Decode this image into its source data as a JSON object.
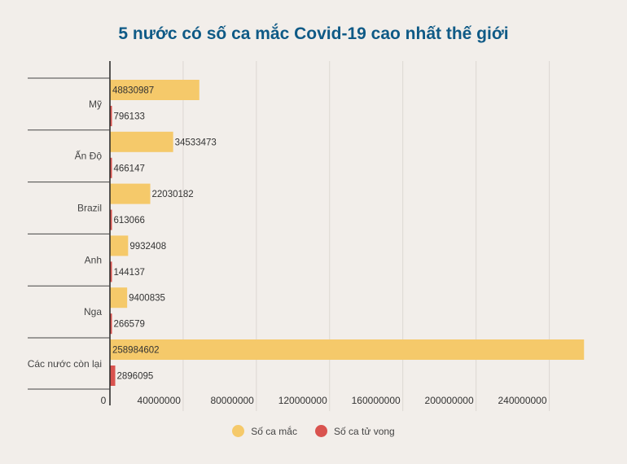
{
  "chart_data": {
    "type": "bar",
    "orientation": "horizontal",
    "title": "5 nước có số ca mắc Covid-19 cao nhất thế giới",
    "categories": [
      "Mỹ",
      "Ấn Độ",
      "Brazil",
      "Anh",
      "Nga",
      "Các nước còn lại"
    ],
    "series": [
      {
        "name": "Số ca mắc",
        "color": "#f5c96a",
        "values": [
          48830987,
          34533473,
          22030182,
          9932408,
          9400835,
          258984602
        ]
      },
      {
        "name": "Số ca tử vong",
        "color": "#d9534f",
        "values": [
          796133,
          466147,
          613066,
          144137,
          266579,
          2896095
        ]
      }
    ],
    "xlim": [
      0,
      270000000
    ],
    "xticks": [
      0,
      40000000,
      80000000,
      120000000,
      160000000,
      200000000,
      240000000
    ],
    "xtick_labels": [
      "0",
      "40000000",
      "80000000",
      "120000000",
      "160000000",
      "200000000",
      "240000000"
    ],
    "grid": true,
    "legend_position": "bottom"
  }
}
